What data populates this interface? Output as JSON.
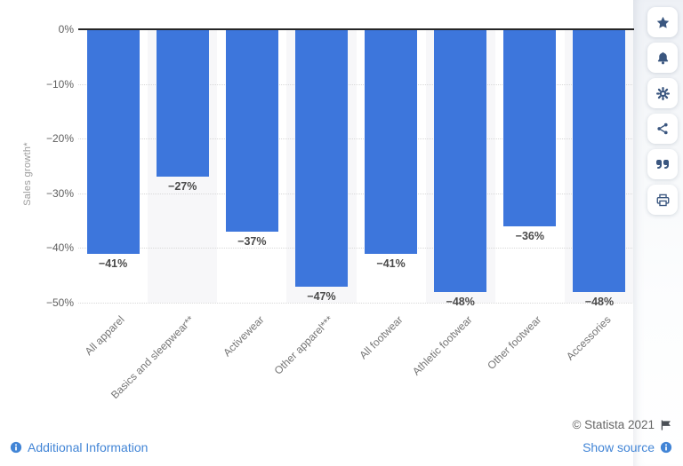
{
  "chart_data": {
    "type": "bar",
    "title": "",
    "categories": [
      "All apparel",
      "Basics and sleepwear**",
      "Activewear",
      "Other apparel***",
      "All footwear",
      "Athletic footwear",
      "Other footwear",
      "Accessories"
    ],
    "values": [
      -41,
      -27,
      -37,
      -47,
      -41,
      -48,
      -36,
      -48
    ],
    "data_labels": [
      "−41%",
      "−27%",
      "−37%",
      "−47%",
      "−41%",
      "−48%",
      "−36%",
      "−48%"
    ],
    "xlabel": "",
    "ylabel": "Sales growth*",
    "ylim": [
      -50,
      0
    ],
    "ytick_values": [
      0,
      -10,
      -20,
      -30,
      -40,
      -50
    ],
    "ytick_labels": [
      "0%",
      "−10%",
      "−20%",
      "−30%",
      "−40%",
      "−50%"
    ],
    "grid": "horizontal-dotted",
    "legend": "none",
    "bar_color": "#3d76dc",
    "plot_stripe_color": "#f7f7f9"
  },
  "toolbar": {
    "buttons": [
      {
        "name": "favorite",
        "icon": "star-icon"
      },
      {
        "name": "alerts",
        "icon": "bell-icon"
      },
      {
        "name": "settings",
        "icon": "gear-icon"
      },
      {
        "name": "share",
        "icon": "share-icon"
      },
      {
        "name": "cite",
        "icon": "quote-icon"
      },
      {
        "name": "print",
        "icon": "printer-icon"
      }
    ]
  },
  "footer": {
    "additional_information": "Additional Information",
    "copyright": "© Statista 2021",
    "show_source": "Show source"
  },
  "colors": {
    "bar": "#3d76dc",
    "link": "#4285d6",
    "toolbar_icon": "#3a567f",
    "flag": "#4a4f55",
    "value_label": "#4a4a4a",
    "axis_text": "#606060",
    "ylabel_text": "#9b9b9b"
  }
}
